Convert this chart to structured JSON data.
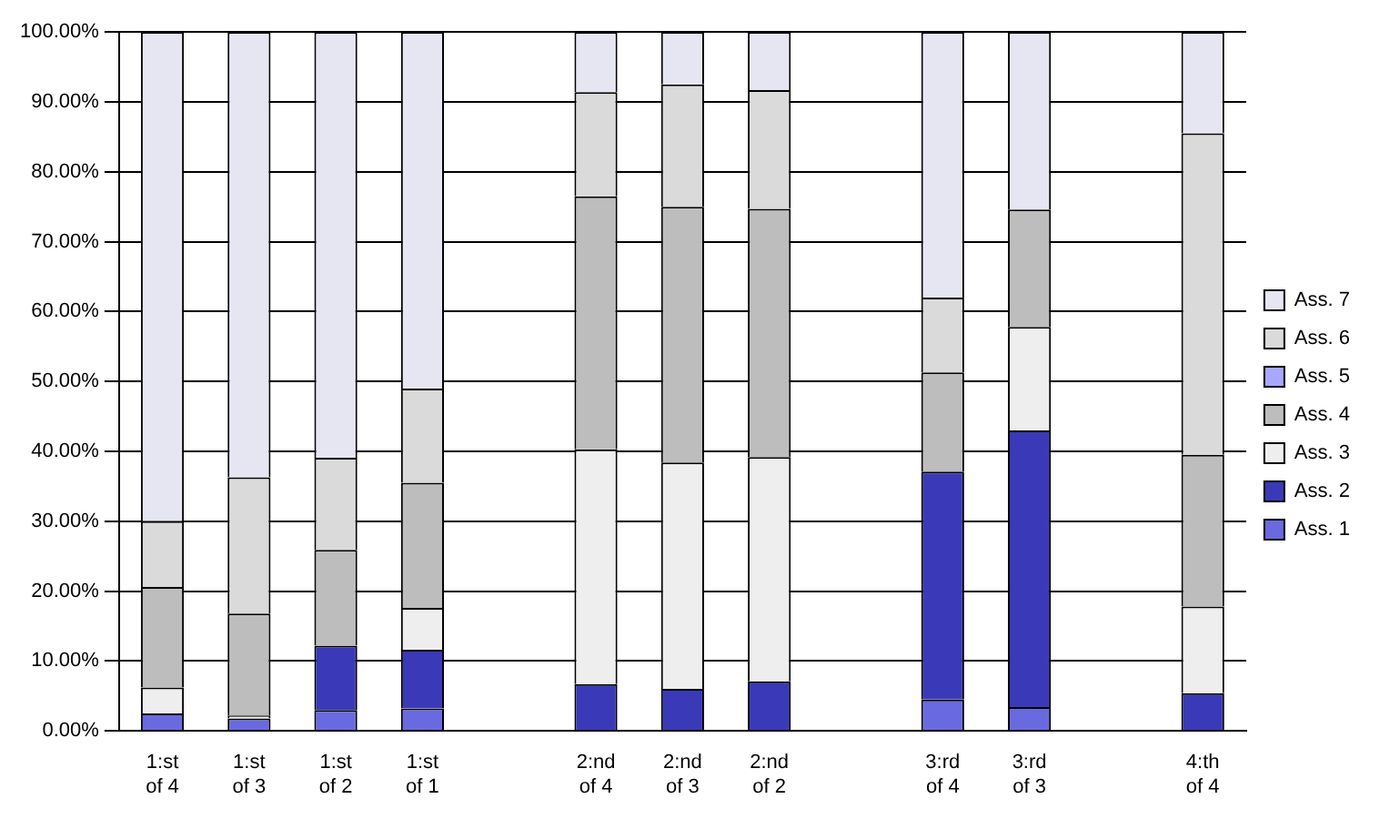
{
  "chart_data": {
    "type": "bar",
    "stacked": true,
    "categories": [
      "1:st of 4",
      "1:st of 3",
      "1:st of 2",
      "1:st of 1",
      null,
      "2:nd of 4",
      "2:nd of 3",
      "2:nd of 2",
      null,
      "3:rd of 4",
      "3:rd of 3",
      null,
      "4:th of 4"
    ],
    "series": [
      {
        "name": "Ass. 1",
        "color": "#6a6ae0",
        "values": [
          2.5,
          1.8,
          3,
          3.2,
          null,
          0,
          0,
          0,
          null,
          4.5,
          3.4,
          null,
          0
        ]
      },
      {
        "name": "Ass. 2",
        "color": "#3a3ab8",
        "values": [
          0,
          0,
          9.2,
          8.4,
          null,
          6.7,
          6,
          7.1,
          null,
          32.6,
          39.6,
          null,
          5.4
        ]
      },
      {
        "name": "Ass. 3",
        "color": "#eeeeee",
        "values": [
          3.7,
          0.4,
          0,
          6,
          null,
          33.6,
          32.4,
          32.1,
          null,
          0,
          14.8,
          null,
          12.4
        ]
      },
      {
        "name": "Ass. 4",
        "color": "#bdbdbd",
        "values": [
          14.4,
          14.6,
          13.7,
          17.9,
          null,
          36.2,
          36.6,
          35.5,
          null,
          14.2,
          16.8,
          null,
          21.7
        ]
      },
      {
        "name": "Ass. 5",
        "color": "#a8a8ff",
        "values": [
          0,
          0,
          0,
          0,
          null,
          0,
          0,
          0,
          null,
          0,
          0,
          null,
          0
        ]
      },
      {
        "name": "Ass. 6",
        "color": "#dadada",
        "values": [
          9.4,
          19.5,
          13.2,
          13.5,
          null,
          14.9,
          17.5,
          17,
          null,
          10.7,
          0,
          null,
          46
        ]
      },
      {
        "name": "Ass. 7",
        "color": "#e6e6f2",
        "values": [
          70,
          63.7,
          60.9,
          51,
          null,
          8.6,
          7.5,
          8.3,
          null,
          38,
          25.4,
          null,
          14.5
        ]
      }
    ],
    "ylim": [
      0,
      100
    ],
    "yticks": [
      {
        "value": 0,
        "label": "0.00%"
      },
      {
        "value": 10,
        "label": "10.00%"
      },
      {
        "value": 20,
        "label": "20.00%"
      },
      {
        "value": 30,
        "label": "30.00%"
      },
      {
        "value": 40,
        "label": "40.00%"
      },
      {
        "value": 50,
        "label": "50.00%"
      },
      {
        "value": 60,
        "label": "60.00%"
      },
      {
        "value": 70,
        "label": "70.00%"
      },
      {
        "value": 80,
        "label": "80.00%"
      },
      {
        "value": 90,
        "label": "90.00%"
      },
      {
        "value": 100,
        "label": "100.00%"
      }
    ],
    "grid": "y",
    "legend": "right"
  }
}
